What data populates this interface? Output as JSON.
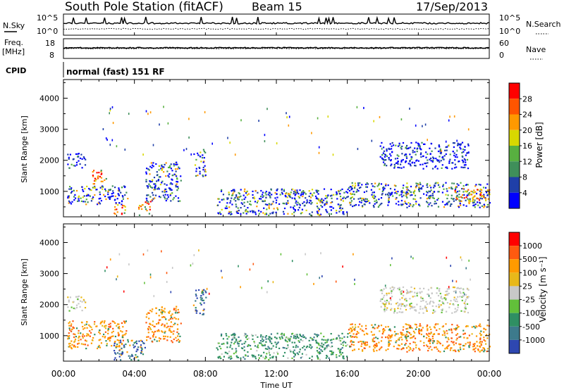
{
  "header": {
    "station": "South Pole Station (fitACF)",
    "beam": "Beam 15",
    "date": "17/Sep/2013"
  },
  "strips": {
    "nsky_label": "N.Sky",
    "nsearch_label": "N.Search",
    "nsky_ticks": [
      "10^5",
      "10^0"
    ],
    "nsearch_ticks": [
      "10^5",
      "10^0"
    ],
    "freq_label": "Freq.",
    "freq_unit": "[MHz]",
    "freq_ticks": [
      "18",
      "8"
    ],
    "nave_label": "Nave",
    "nave_ticks": [
      "60",
      "0"
    ],
    "cpid_label": "CPID",
    "cpid_value": "normal (fast) 151 RF"
  },
  "colors": {
    "power": [
      "#0000ff",
      "#1f3fa8",
      "#3f8f5a",
      "#58b040",
      "#d8d800",
      "#ff9900",
      "#ff5500",
      "#ff0000"
    ],
    "velocity": [
      "#2e47b0",
      "#3d7a8c",
      "#2f8f63",
      "#62c03a",
      "#c8c8c8",
      "#e8b81a",
      "#ff9a00",
      "#ff5a10",
      "#ff0000"
    ]
  },
  "chart_data": [
    {
      "type": "heatmap",
      "name": "power",
      "xlabel": "",
      "ylabel": "Slant Range [km]",
      "x_ticks": [
        "00:00",
        "04:00",
        "08:00",
        "12:00",
        "16:00",
        "20:00",
        "00:00"
      ],
      "x_range_hours": [
        0,
        24
      ],
      "y_ticks": [
        1000,
        2000,
        3000,
        4000
      ],
      "y_range_km": [
        180,
        4600
      ],
      "colorbar": {
        "label": "Power [dB]",
        "ticks": [
          4,
          8,
          12,
          16,
          20,
          24,
          28
        ],
        "range": [
          0,
          32
        ]
      },
      "regions": [
        {
          "t": [
            0.2,
            1.2
          ],
          "r": [
            1750,
            2250
          ],
          "level": "weak"
        },
        {
          "t": [
            0.2,
            3.6
          ],
          "r": [
            600,
            1200
          ],
          "level": "moderate"
        },
        {
          "t": [
            1.6,
            2.4
          ],
          "r": [
            1100,
            1700
          ],
          "level": "strong"
        },
        {
          "t": [
            2.8,
            3.5
          ],
          "r": [
            250,
            600
          ],
          "level": "strong"
        },
        {
          "t": [
            4.2,
            4.9
          ],
          "r": [
            250,
            700
          ],
          "level": "strong"
        },
        {
          "t": [
            4.6,
            6.6
          ],
          "r": [
            700,
            2000
          ],
          "level": "moderate"
        },
        {
          "t": [
            7.3,
            8.0
          ],
          "r": [
            1500,
            2450
          ],
          "level": "moderate"
        },
        {
          "t": [
            8.6,
            16.0
          ],
          "r": [
            250,
            1100
          ],
          "level": "moderate"
        },
        {
          "t": [
            16.0,
            24.0
          ],
          "r": [
            500,
            1300
          ],
          "level": "moderate"
        },
        {
          "t": [
            17.8,
            22.8
          ],
          "r": [
            1750,
            2600
          ],
          "level": "weak"
        },
        {
          "t": [
            22.0,
            24.0
          ],
          "r": [
            700,
            1100
          ],
          "level": "strong"
        }
      ]
    },
    {
      "type": "heatmap",
      "name": "velocity",
      "xlabel": "Time UT",
      "ylabel": "Slant Range [km]",
      "x_ticks": [
        "00:00",
        "04:00",
        "08:00",
        "12:00",
        "16:00",
        "20:00",
        "00:00"
      ],
      "x_range_hours": [
        0,
        24
      ],
      "y_ticks": [
        1000,
        2000,
        3000,
        4000
      ],
      "y_range_km": [
        180,
        4600
      ],
      "colorbar": {
        "label": "Velocity [m s⁻¹]",
        "ticks": [
          "1000",
          "500",
          "100",
          "25",
          "-25",
          "-100",
          "-500",
          "-1000"
        ]
      },
      "regions": [
        {
          "t": [
            0.2,
            1.2
          ],
          "r": [
            1800,
            2300
          ],
          "v": "zero"
        },
        {
          "t": [
            0.2,
            3.6
          ],
          "r": [
            600,
            1500
          ],
          "v": "away"
        },
        {
          "t": [
            2.8,
            4.6
          ],
          "r": [
            200,
            900
          ],
          "v": "toward"
        },
        {
          "t": [
            4.6,
            6.6
          ],
          "r": [
            800,
            2000
          ],
          "v": "away"
        },
        {
          "t": [
            7.3,
            8.0
          ],
          "r": [
            1700,
            2500
          ],
          "v": "toward"
        },
        {
          "t": [
            8.6,
            16.0
          ],
          "r": [
            250,
            1100
          ],
          "v": "weak-toward"
        },
        {
          "t": [
            16.0,
            24.0
          ],
          "r": [
            500,
            1400
          ],
          "v": "away"
        },
        {
          "t": [
            17.8,
            22.8
          ],
          "r": [
            1750,
            2600
          ],
          "v": "zero"
        }
      ]
    }
  ]
}
